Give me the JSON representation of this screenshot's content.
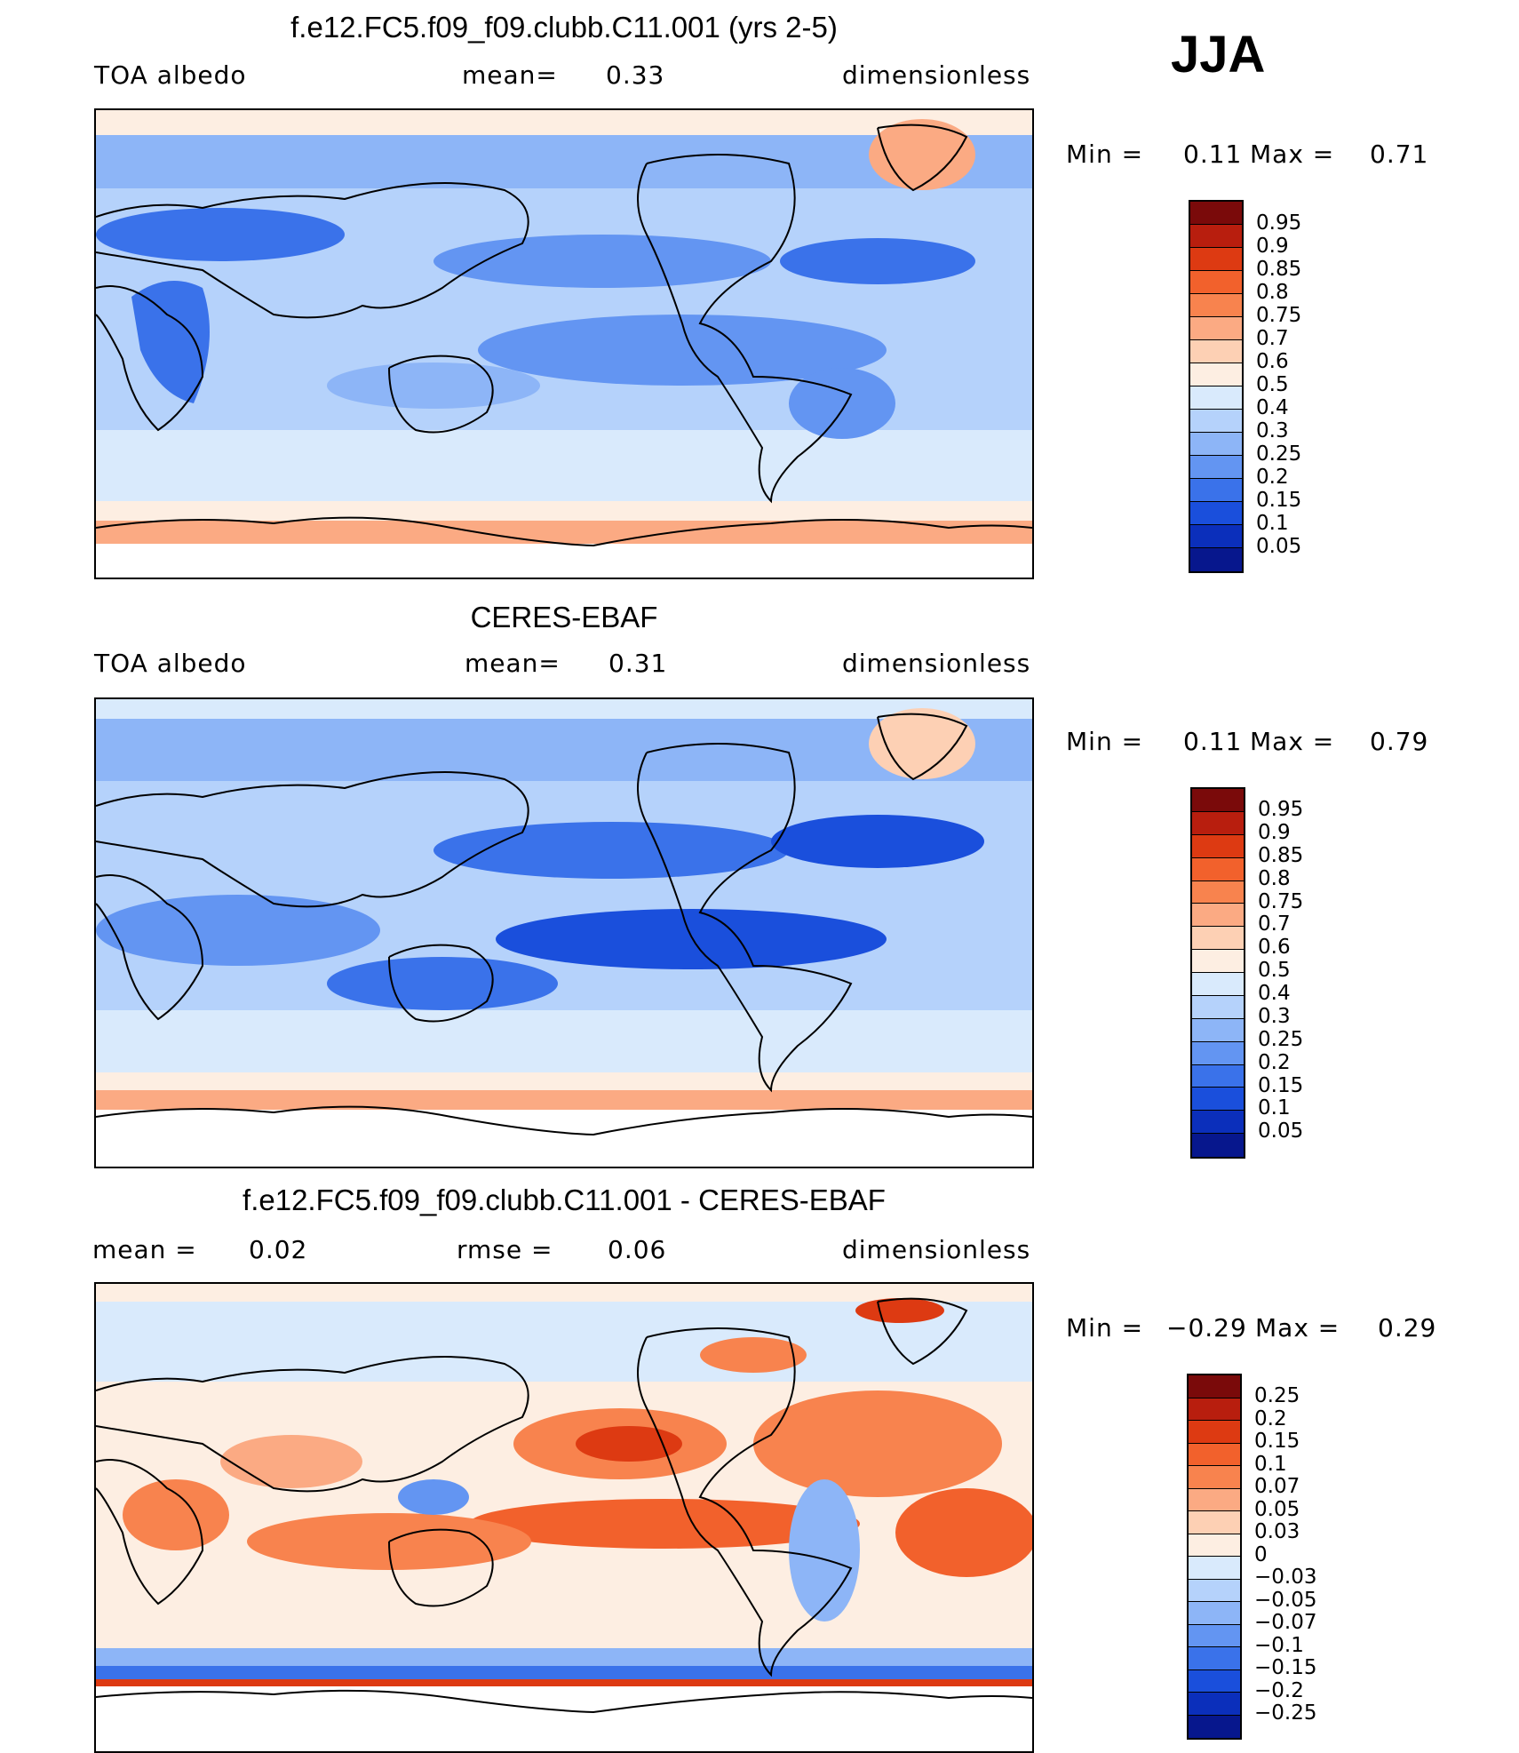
{
  "season": "JJA",
  "panels": [
    {
      "title": "f.e12.FC5.f09_f09.clubb.C11.001 (yrs 2-5)",
      "left_label": "TOA albedo",
      "center_label": "mean=",
      "center_value": "0.33",
      "right_label": "dimensionless",
      "min_label": "Min =",
      "min_value": "0.11",
      "max_label": "Max =",
      "max_value": "0.71",
      "colorbar_ticks": [
        "0.95",
        "0.9",
        "0.85",
        "0.8",
        "0.75",
        "0.7",
        "0.6",
        "0.5",
        "0.4",
        "0.3",
        "0.25",
        "0.2",
        "0.15",
        "0.1",
        "0.05"
      ]
    },
    {
      "title": "CERES-EBAF",
      "left_label": "TOA albedo",
      "center_label": "mean=",
      "center_value": "0.31",
      "right_label": "dimensionless",
      "min_label": "Min =",
      "min_value": "0.11",
      "max_label": "Max =",
      "max_value": "0.79",
      "colorbar_ticks": [
        "0.95",
        "0.9",
        "0.85",
        "0.8",
        "0.75",
        "0.7",
        "0.6",
        "0.5",
        "0.4",
        "0.3",
        "0.25",
        "0.2",
        "0.15",
        "0.1",
        "0.05"
      ]
    },
    {
      "title": "f.e12.FC5.f09_f09.clubb.C11.001 - CERES-EBAF",
      "left_label": "mean =",
      "left_value": "0.02",
      "center_label": "rmse =",
      "center_value": "0.06",
      "right_label": "dimensionless",
      "min_label": "Min =",
      "min_value": "−0.29",
      "max_label": "Max =",
      "max_value": "0.29",
      "colorbar_ticks": [
        "0.25",
        "0.2",
        "0.15",
        "0.1",
        "0.07",
        "0.05",
        "0.03",
        "0",
        "−0.03",
        "−0.05",
        "−0.07",
        "−0.1",
        "−0.15",
        "−0.2",
        "−0.25"
      ]
    }
  ],
  "colors": {
    "abs_scale": [
      "#7a0a0a",
      "#b81e0e",
      "#dd3a12",
      "#f2612c",
      "#f8834e",
      "#fbaa83",
      "#fdd0b4",
      "#fdeee2",
      "#d9eafc",
      "#b5d2fb",
      "#8db5f7",
      "#6395f2",
      "#3a72ea",
      "#1a4fdc",
      "#0b2fbb",
      "#07178d"
    ],
    "diff_scale": [
      "#7a0a0a",
      "#b81e0e",
      "#dd3a12",
      "#f2612c",
      "#f8834e",
      "#fbaa83",
      "#fdd0b4",
      "#fdeee2",
      "#d9eafc",
      "#b5d2fb",
      "#8db5f7",
      "#6395f2",
      "#3a72ea",
      "#1a4fdc",
      "#0b2fbb",
      "#07178d"
    ]
  }
}
